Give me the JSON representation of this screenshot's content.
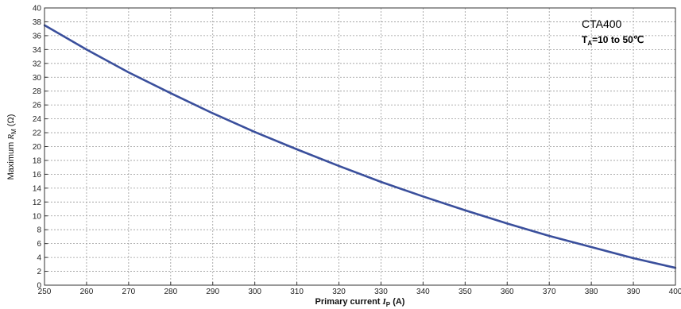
{
  "chart_data": {
    "type": "line",
    "title": "",
    "xlabel": "Primary current I_P (A)",
    "xlabel_parts": {
      "text": "Primary current ",
      "var": "I",
      "sub": "P",
      "unit": " (A)"
    },
    "ylabel": "Maximum R_M (Ω)",
    "ylabel_parts": {
      "text": "Maximum ",
      "var": "R",
      "sub": "M",
      "unit": " (Ω)"
    },
    "xlim": [
      250,
      400
    ],
    "ylim": [
      0,
      40
    ],
    "xticks": [
      250,
      260,
      270,
      280,
      290,
      300,
      310,
      320,
      330,
      340,
      350,
      360,
      370,
      380,
      390,
      400
    ],
    "yticks": [
      0,
      2,
      4,
      6,
      8,
      10,
      12,
      14,
      16,
      18,
      20,
      22,
      24,
      26,
      28,
      30,
      32,
      34,
      36,
      38,
      40
    ],
    "grid": true,
    "grid_style": "dotted",
    "series": [
      {
        "color": "#3a4f9c",
        "x": [
          250,
          260,
          270,
          280,
          290,
          300,
          310,
          320,
          330,
          340,
          350,
          360,
          370,
          380,
          390,
          400
        ],
        "y": [
          37.5,
          34.0,
          30.7,
          27.7,
          24.8,
          22.1,
          19.6,
          17.2,
          14.9,
          12.8,
          10.8,
          8.9,
          7.1,
          5.5,
          3.9,
          2.5
        ]
      }
    ],
    "annotations": [
      {
        "id": "model",
        "text": "CTA400"
      },
      {
        "id": "temp",
        "var": "T",
        "sub": "A",
        "text": "=10 to 50℃"
      }
    ]
  }
}
